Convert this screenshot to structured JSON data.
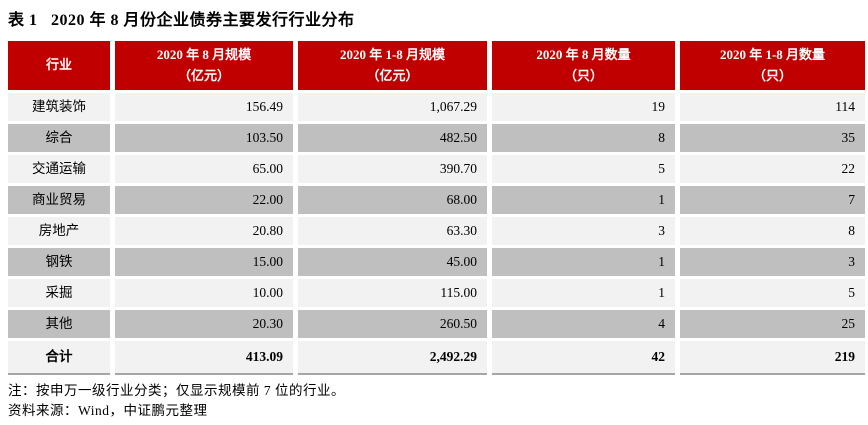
{
  "title": "表 1   2020 年 8 月份企业债券主要发行行业分布",
  "colors": {
    "header_bg": "#c00000",
    "header_text": "#ffffff",
    "row_light": "#f2f2f2",
    "row_dark": "#bfbfbf",
    "bottom_border": "#a6a6a6"
  },
  "table": {
    "columns": [
      {
        "line1": "行业",
        "line2": ""
      },
      {
        "line1": "2020 年 8 月规模",
        "line2": "（亿元）"
      },
      {
        "line1": "2020 年 1-8 月规模",
        "line2": "（亿元）"
      },
      {
        "line1": "2020 年 8 月数量",
        "line2": "（只）"
      },
      {
        "line1": "2020 年 1-8 月数量",
        "line2": "（只）"
      }
    ],
    "rows": [
      [
        "建筑装饰",
        "156.49",
        "1,067.29",
        "19",
        "114"
      ],
      [
        "综合",
        "103.50",
        "482.50",
        "8",
        "35"
      ],
      [
        "交通运输",
        "65.00",
        "390.70",
        "5",
        "22"
      ],
      [
        "商业贸易",
        "22.00",
        "68.00",
        "1",
        "7"
      ],
      [
        "房地产",
        "20.80",
        "63.30",
        "3",
        "8"
      ],
      [
        "钢铁",
        "15.00",
        "45.00",
        "1",
        "3"
      ],
      [
        "采掘",
        "10.00",
        "115.00",
        "1",
        "5"
      ],
      [
        "其他",
        "20.30",
        "260.50",
        "4",
        "25"
      ]
    ],
    "total": [
      "合计",
      "413.09",
      "2,492.29",
      "42",
      "219"
    ]
  },
  "notes": {
    "note": "注：按申万一级行业分类；仅显示规模前 7 位的行业。",
    "source": "资料来源：Wind，中证鹏元整理"
  },
  "chart_data": {
    "type": "table",
    "title": "表 1 2020 年 8 月份企业债券主要发行行业分布",
    "categories": [
      "建筑装饰",
      "综合",
      "交通运输",
      "商业贸易",
      "房地产",
      "钢铁",
      "采掘",
      "其他",
      "合计"
    ],
    "series": [
      {
        "name": "2020年8月规模（亿元）",
        "values": [
          156.49,
          103.5,
          65.0,
          22.0,
          20.8,
          15.0,
          10.0,
          20.3,
          413.09
        ]
      },
      {
        "name": "2020年1-8月规模（亿元）",
        "values": [
          1067.29,
          482.5,
          390.7,
          68.0,
          63.3,
          45.0,
          115.0,
          260.5,
          2492.29
        ]
      },
      {
        "name": "2020年8月数量（只）",
        "values": [
          19,
          8,
          5,
          1,
          3,
          1,
          1,
          4,
          42
        ]
      },
      {
        "name": "2020年1-8月数量（只）",
        "values": [
          114,
          35,
          22,
          7,
          8,
          3,
          5,
          25,
          219
        ]
      }
    ]
  }
}
